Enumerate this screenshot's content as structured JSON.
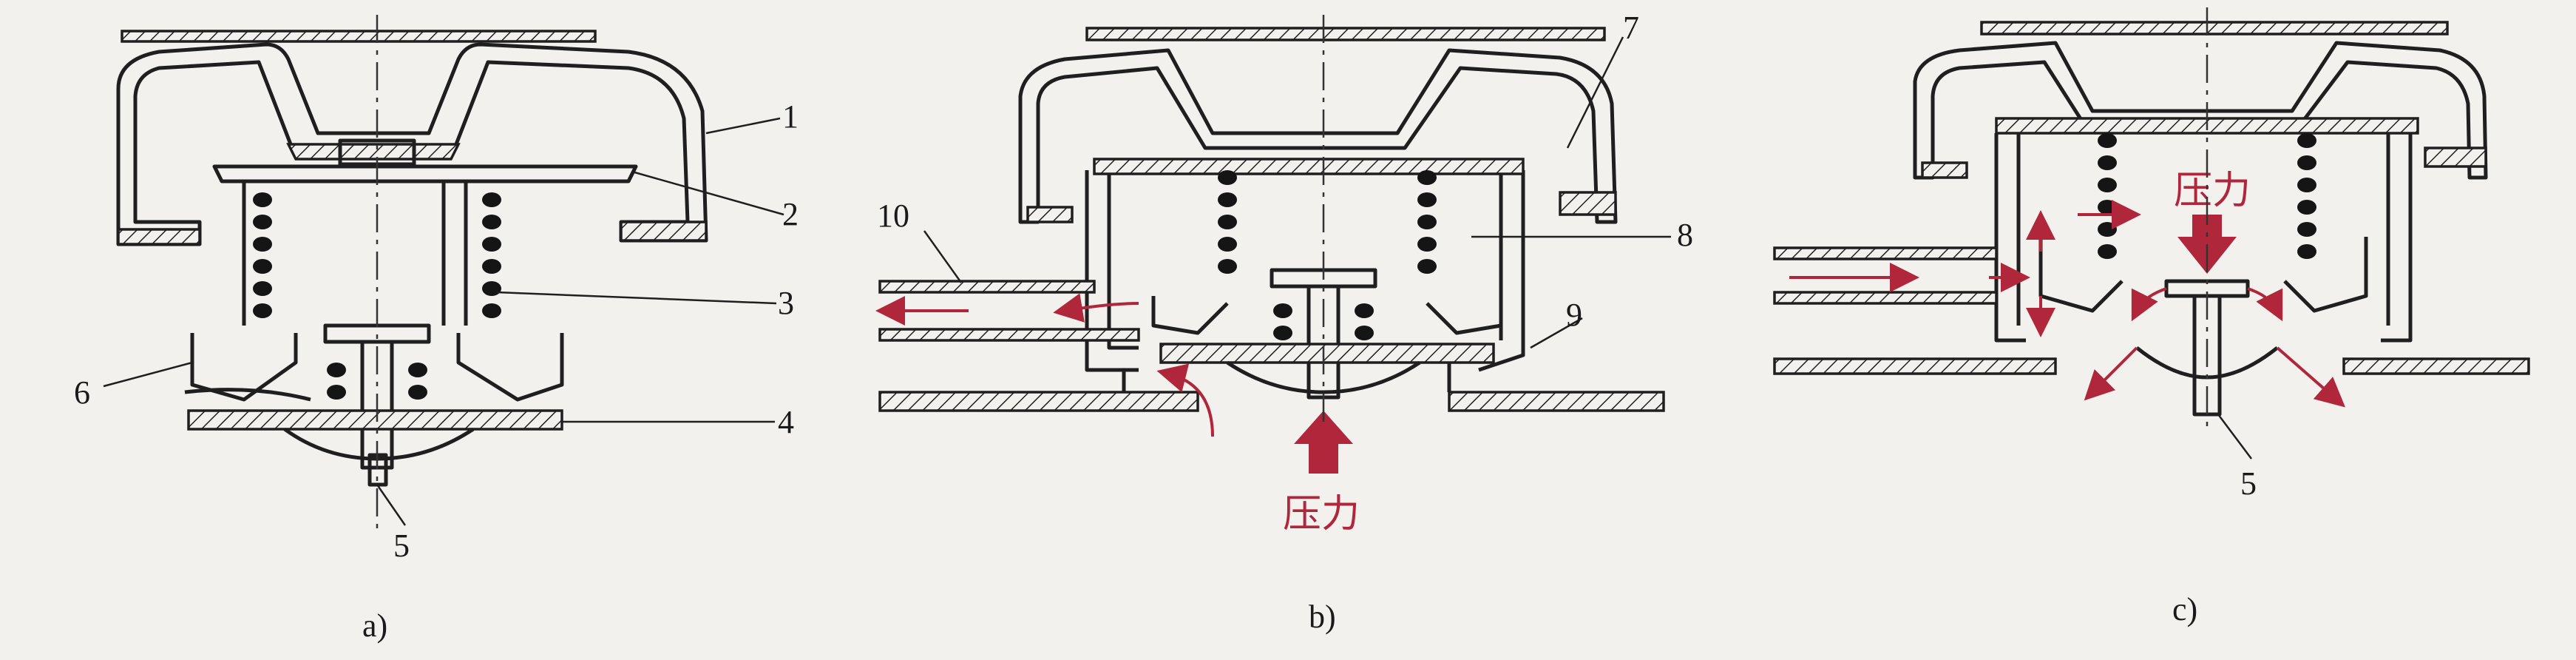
{
  "figure": {
    "panel_a": {
      "caption": "a)",
      "callouts": [
        "1",
        "2",
        "3",
        "4",
        "5",
        "6"
      ]
    },
    "panel_b": {
      "caption": "b)",
      "callouts": [
        "7",
        "8",
        "9",
        "10"
      ],
      "pressure_label": "压力"
    },
    "panel_c": {
      "caption": "c)",
      "callouts": [
        "5"
      ],
      "pressure_label": "压力"
    },
    "colors": {
      "line": "#1f1f1f",
      "flow": "#b0263a",
      "background": "#f2f1ee"
    }
  }
}
